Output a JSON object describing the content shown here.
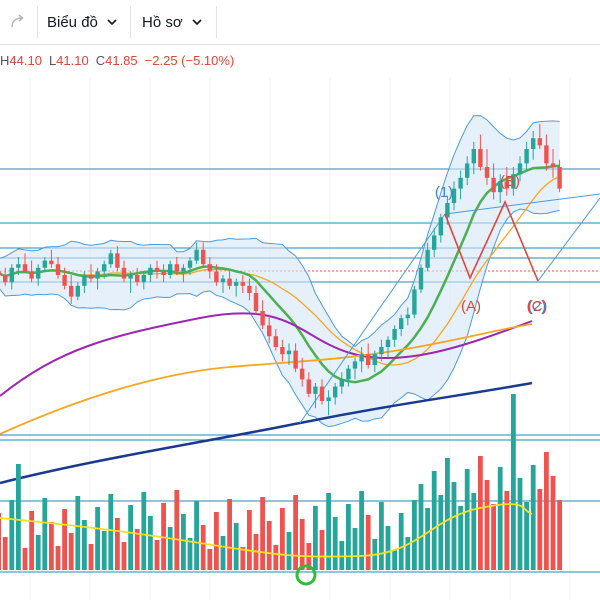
{
  "toolbar": {
    "chart_menu_label": "Biểu đồ",
    "profile_menu_label": "Hồ sơ",
    "redo_icon": "redo-icon",
    "chevron_icon": "chevron-down-icon"
  },
  "legend": {
    "high_label": "H",
    "high_value": "44.10",
    "low_label": "L",
    "low_value": "41.10",
    "close_label": "C",
    "close_value": "41.85",
    "change_text": "−2.25 (−5.10%)"
  },
  "colors": {
    "up": "#26a69a",
    "down": "#ef5350",
    "bb": "#4a9be0",
    "bb_fill": "#d5e6f6",
    "ma_green": "#4caf50",
    "ma_orange": "#f5a623",
    "ma_purple": "#9c27b0",
    "ma_navy": "#1a3a8f",
    "hline": "#1f89b6",
    "wave_red": "#e0453a",
    "wave_blue": "#3d85c6"
  },
  "wave_labels": {
    "w1": "(1)",
    "wB": "(B)",
    "wA": "(A)",
    "w2": "(2)",
    "wC": "(C)"
  },
  "chart_data": {
    "type": "candlestick",
    "candles": [
      [
        4,
        8,
        2,
        6
      ],
      [
        6,
        9,
        4,
        5
      ],
      [
        5,
        7,
        2,
        3
      ],
      [
        3,
        8,
        1,
        7
      ],
      [
        7,
        10,
        5,
        8
      ],
      [
        8,
        11,
        6,
        6
      ],
      [
        6,
        9,
        3,
        4
      ],
      [
        4,
        8,
        2,
        7
      ],
      [
        7,
        10,
        6,
        9
      ],
      [
        9,
        12,
        7,
        8
      ],
      [
        8,
        10,
        4,
        5
      ],
      [
        5,
        7,
        1,
        2
      ],
      [
        2,
        5,
        -3,
        -1
      ],
      [
        -1,
        3,
        -2,
        2
      ],
      [
        2,
        6,
        0,
        5
      ],
      [
        5,
        8,
        3,
        4
      ],
      [
        4,
        7,
        1,
        6
      ],
      [
        6,
        9,
        4,
        8
      ],
      [
        8,
        12,
        7,
        11
      ],
      [
        11,
        13,
        6,
        7
      ],
      [
        7,
        9,
        3,
        4
      ],
      [
        4,
        6,
        0,
        5
      ],
      [
        5,
        7,
        2,
        3
      ],
      [
        3,
        6,
        1,
        5
      ],
      [
        5,
        8,
        3,
        7
      ],
      [
        7,
        9,
        4,
        6
      ],
      [
        6,
        8,
        3,
        5
      ],
      [
        5,
        9,
        4,
        8
      ],
      [
        8,
        10,
        5,
        6
      ],
      [
        6,
        8,
        3,
        7
      ],
      [
        7,
        10,
        5,
        9
      ],
      [
        9,
        14,
        8,
        12
      ],
      [
        12,
        14,
        7,
        8
      ],
      [
        8,
        10,
        4,
        6
      ],
      [
        6,
        8,
        2,
        3
      ],
      [
        3,
        5,
        0,
        4
      ],
      [
        4,
        6,
        1,
        2
      ],
      [
        2,
        4,
        -1,
        3
      ],
      [
        3,
        5,
        0,
        2
      ],
      [
        2,
        4,
        -2,
        0
      ],
      [
        0,
        2,
        -6,
        -5
      ],
      [
        -5,
        -2,
        -10,
        -9
      ],
      [
        -9,
        -6,
        -14,
        -12
      ],
      [
        -12,
        -10,
        -16,
        -15
      ],
      [
        -15,
        -13,
        -19,
        -17
      ],
      [
        -17,
        -14,
        -20,
        -16
      ],
      [
        -16,
        -14,
        -22,
        -21
      ],
      [
        -21,
        -18,
        -26,
        -24
      ],
      [
        -24,
        -22,
        -29,
        -28
      ],
      [
        -28,
        -25,
        -32,
        -26
      ],
      [
        -26,
        -24,
        -31,
        -30
      ],
      [
        -30,
        -27,
        -34,
        -29
      ],
      [
        -29,
        -25,
        -31,
        -26
      ],
      [
        -26,
        -22,
        -28,
        -24
      ],
      [
        -24,
        -20,
        -26,
        -21
      ],
      [
        -21,
        -18,
        -24,
        -19
      ],
      [
        -19,
        -15,
        -22,
        -17
      ],
      [
        -17,
        -14,
        -21,
        -20
      ],
      [
        -20,
        -16,
        -22,
        -17
      ],
      [
        -17,
        -13,
        -19,
        -15
      ],
      [
        -15,
        -12,
        -18,
        -13
      ],
      [
        -13,
        -9,
        -15,
        -10
      ],
      [
        -10,
        -6,
        -12,
        -7
      ],
      [
        -7,
        -4,
        -9,
        -6
      ],
      [
        -6,
        2,
        -7,
        1
      ],
      [
        1,
        8,
        0,
        7
      ],
      [
        7,
        14,
        6,
        12
      ],
      [
        12,
        18,
        10,
        16
      ],
      [
        16,
        22,
        14,
        21
      ],
      [
        21,
        27,
        19,
        25
      ],
      [
        25,
        31,
        23,
        29
      ],
      [
        29,
        34,
        26,
        32
      ],
      [
        32,
        38,
        30,
        36
      ],
      [
        36,
        42,
        33,
        40
      ],
      [
        40,
        44,
        34,
        35
      ],
      [
        35,
        40,
        30,
        32
      ],
      [
        32,
        36,
        26,
        28
      ],
      [
        28,
        33,
        25,
        31
      ],
      [
        31,
        35,
        27,
        29
      ],
      [
        29,
        35,
        27,
        33
      ],
      [
        33,
        38,
        31,
        36
      ],
      [
        36,
        42,
        34,
        40
      ],
      [
        40,
        45,
        37,
        43
      ],
      [
        43,
        47,
        40,
        41
      ],
      [
        41,
        44,
        34,
        36
      ],
      [
        36,
        40,
        32,
        35
      ],
      [
        35,
        37,
        28,
        29
      ]
    ],
    "volume_bars": "schematic (height varies by day)",
    "ma_lines": [
      "green MA",
      "orange MA",
      "purple MA",
      "navy MA"
    ],
    "horizontal_lines": 6,
    "price_dotted_line": true
  }
}
